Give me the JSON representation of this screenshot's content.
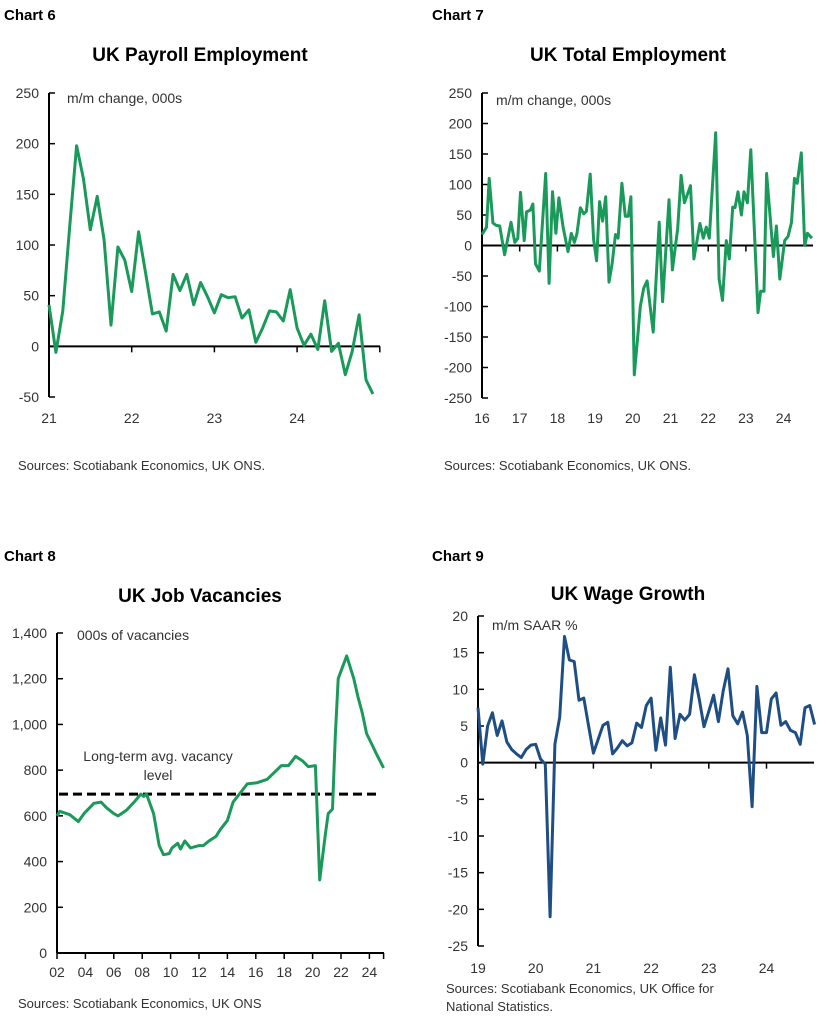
{
  "chart_data": [
    {
      "label": "Chart 6",
      "title": "UK Payroll Employment",
      "type": "line",
      "unit_label": "m/m change, 000s",
      "source": "Sources: Scotiabank Economics, UK ONS.",
      "color": "#1a9a5a",
      "frequency": "monthly",
      "x_start": "2021-01",
      "ylim": [
        -50,
        250
      ],
      "yticks": [
        "250",
        "200",
        "150",
        "100",
        "50",
        "0",
        "-50"
      ],
      "xticks": [
        "21",
        "22",
        "23",
        "24"
      ],
      "values": [
        41,
        -6,
        35,
        118,
        198,
        165,
        115,
        148,
        105,
        21,
        98,
        85,
        54,
        113,
        73,
        32,
        34,
        15,
        71,
        55,
        71,
        41,
        63,
        49,
        33,
        51,
        48,
        49,
        28,
        36,
        4,
        18,
        35,
        34,
        25,
        56,
        18,
        1,
        12,
        -3,
        45,
        -5,
        3,
        -28,
        -5,
        31,
        -33,
        -47
      ]
    },
    {
      "label": "Chart 7",
      "title": "UK Total Employment",
      "type": "line",
      "unit_label": "m/m change, 000s",
      "source": "Sources: Scotiabank Economics, UK ONS.",
      "color": "#1a9a5a",
      "ylim": [
        -250,
        250
      ],
      "yticks": [
        "250",
        "200",
        "150",
        "100",
        "50",
        "0",
        "-50",
        "-100",
        "-150",
        "-200",
        "-250"
      ],
      "xticks": [
        "16",
        "17",
        "18",
        "19",
        "20",
        "21",
        "22",
        "23",
        "24"
      ],
      "points": [
        [
          2016.0,
          18
        ],
        [
          2016.12,
          30
        ],
        [
          2016.19,
          110
        ],
        [
          2016.29,
          37
        ],
        [
          2016.38,
          33
        ],
        [
          2016.47,
          32
        ],
        [
          2016.6,
          -15
        ],
        [
          2016.77,
          38
        ],
        [
          2016.87,
          5
        ],
        [
          2016.95,
          12
        ],
        [
          2017.02,
          87
        ],
        [
          2017.12,
          8
        ],
        [
          2017.18,
          55
        ],
        [
          2017.28,
          58
        ],
        [
          2017.35,
          68
        ],
        [
          2017.42,
          -30
        ],
        [
          2017.52,
          -42
        ],
        [
          2017.69,
          118
        ],
        [
          2017.78,
          -62
        ],
        [
          2017.87,
          88
        ],
        [
          2017.96,
          20
        ],
        [
          2018.04,
          78
        ],
        [
          2018.15,
          30
        ],
        [
          2018.28,
          -10
        ],
        [
          2018.37,
          20
        ],
        [
          2018.45,
          5
        ],
        [
          2018.52,
          20
        ],
        [
          2018.61,
          62
        ],
        [
          2018.7,
          52
        ],
        [
          2018.77,
          56
        ],
        [
          2018.87,
          117
        ],
        [
          2018.96,
          10
        ],
        [
          2019.04,
          -25
        ],
        [
          2019.12,
          72
        ],
        [
          2019.2,
          40
        ],
        [
          2019.28,
          80
        ],
        [
          2019.37,
          -60
        ],
        [
          2019.45,
          -30
        ],
        [
          2019.54,
          18
        ],
        [
          2019.61,
          12
        ],
        [
          2019.71,
          102
        ],
        [
          2019.8,
          48
        ],
        [
          2019.88,
          48
        ],
        [
          2019.95,
          80
        ],
        [
          2020.04,
          -212
        ],
        [
          2020.13,
          -150
        ],
        [
          2020.2,
          -100
        ],
        [
          2020.29,
          -70
        ],
        [
          2020.38,
          -58
        ],
        [
          2020.45,
          -95
        ],
        [
          2020.54,
          -142
        ],
        [
          2020.7,
          38
        ],
        [
          2020.79,
          -92
        ],
        [
          2020.96,
          75
        ],
        [
          2021.05,
          -40
        ],
        [
          2021.19,
          28
        ],
        [
          2021.28,
          115
        ],
        [
          2021.37,
          70
        ],
        [
          2021.53,
          98
        ],
        [
          2021.62,
          -22
        ],
        [
          2021.78,
          36
        ],
        [
          2021.87,
          12
        ],
        [
          2021.95,
          30
        ],
        [
          2022.03,
          12
        ],
        [
          2022.2,
          185
        ],
        [
          2022.29,
          -55
        ],
        [
          2022.38,
          -90
        ],
        [
          2022.48,
          8
        ],
        [
          2022.56,
          -22
        ],
        [
          2022.65,
          63
        ],
        [
          2022.71,
          62
        ],
        [
          2022.79,
          88
        ],
        [
          2022.88,
          50
        ],
        [
          2022.95,
          88
        ],
        [
          2023.04,
          70
        ],
        [
          2023.13,
          157
        ],
        [
          2023.32,
          -110
        ],
        [
          2023.39,
          -75
        ],
        [
          2023.48,
          -75
        ],
        [
          2023.55,
          118
        ],
        [
          2023.73,
          -18
        ],
        [
          2023.81,
          32
        ],
        [
          2023.9,
          -55
        ],
        [
          2024.03,
          8
        ],
        [
          2024.12,
          15
        ],
        [
          2024.21,
          38
        ],
        [
          2024.29,
          110
        ],
        [
          2024.36,
          102
        ],
        [
          2024.47,
          152
        ],
        [
          2024.56,
          0
        ],
        [
          2024.63,
          20
        ],
        [
          2024.75,
          12
        ]
      ]
    },
    {
      "label": "Chart 8",
      "title": "UK Job Vacancies",
      "type": "line",
      "unit_label": "000s of vacancies",
      "source": "Sources: Scotiabank Economics, UK ONS",
      "color": "#1a9a5a",
      "ylim": [
        0,
        1400
      ],
      "yticks": [
        "1,400",
        "1,200",
        "1,000",
        "800",
        "600",
        "400",
        "200",
        "0"
      ],
      "xticks": [
        "02",
        "04",
        "06",
        "08",
        "10",
        "12",
        "14",
        "16",
        "18",
        "20",
        "22",
        "24"
      ],
      "reference_line": {
        "label": "Long-term avg. vacancy level",
        "label_line1": "Long-term avg. vacancy",
        "label_line2": "level",
        "value": 695,
        "color": "#000000",
        "style": "dashed"
      },
      "points": [
        [
          2002.0,
          600
        ],
        [
          2002.2,
          620
        ],
        [
          2002.9,
          605
        ],
        [
          2003.5,
          575
        ],
        [
          2003.9,
          610
        ],
        [
          2004.6,
          655
        ],
        [
          2005.1,
          660
        ],
        [
          2005.5,
          635
        ],
        [
          2006.0,
          610
        ],
        [
          2006.3,
          600
        ],
        [
          2006.9,
          625
        ],
        [
          2007.5,
          665
        ],
        [
          2007.9,
          695
        ],
        [
          2008.1,
          685
        ],
        [
          2008.3,
          695
        ],
        [
          2008.8,
          610
        ],
        [
          2009.2,
          470
        ],
        [
          2009.5,
          430
        ],
        [
          2009.9,
          435
        ],
        [
          2010.1,
          460
        ],
        [
          2010.5,
          480
        ],
        [
          2010.7,
          455
        ],
        [
          2011.0,
          490
        ],
        [
          2011.4,
          460
        ],
        [
          2012.0,
          470
        ],
        [
          2012.3,
          470
        ],
        [
          2012.7,
          490
        ],
        [
          2013.2,
          510
        ],
        [
          2013.5,
          540
        ],
        [
          2014.0,
          580
        ],
        [
          2014.4,
          660
        ],
        [
          2014.9,
          700
        ],
        [
          2015.4,
          740
        ],
        [
          2016.1,
          745
        ],
        [
          2016.8,
          760
        ],
        [
          2017.3,
          790
        ],
        [
          2017.8,
          820
        ],
        [
          2018.3,
          820
        ],
        [
          2018.8,
          860
        ],
        [
          2019.3,
          840
        ],
        [
          2019.7,
          815
        ],
        [
          2020.2,
          820
        ],
        [
          2020.5,
          320
        ],
        [
          2020.9,
          520
        ],
        [
          2021.1,
          610
        ],
        [
          2021.4,
          630
        ],
        [
          2021.6,
          950
        ],
        [
          2021.8,
          1200
        ],
        [
          2022.1,
          1250
        ],
        [
          2022.4,
          1300
        ],
        [
          2022.9,
          1200
        ],
        [
          2023.2,
          1120
        ],
        [
          2023.5,
          1050
        ],
        [
          2023.8,
          960
        ],
        [
          2024.2,
          910
        ],
        [
          2024.5,
          870
        ],
        [
          2025.0,
          810
        ]
      ]
    },
    {
      "label": "Chart 9",
      "title": "UK Wage Growth",
      "type": "line",
      "unit_label": "m/m SAAR %",
      "source_line1": "Sources: Scotiabank Economics, UK Office for",
      "source_line2": "National Statistics.",
      "color": "#1f4e85",
      "frequency": "monthly",
      "x_start": "2019-01",
      "ylim": [
        -25,
        20
      ],
      "yticks": [
        "20",
        "15",
        "10",
        "5",
        "0",
        "-5",
        "-10",
        "-15",
        "-20",
        "-25"
      ],
      "xticks": [
        "19",
        "20",
        "21",
        "22",
        "23",
        "24"
      ],
      "values": [
        7.5,
        -0.2,
        5,
        6.8,
        3.7,
        5.7,
        2.8,
        1.8,
        1.2,
        0.7,
        1.8,
        2.4,
        2.5,
        0.5,
        -0.2,
        -21,
        2.5,
        6.2,
        17.2,
        14,
        13.8,
        8.5,
        8.8,
        5,
        1.3,
        3.2,
        5.1,
        5.5,
        1.2,
        2,
        3,
        2.3,
        2.7,
        5.4,
        4.8,
        7.8,
        8.8,
        1.7,
        6.1,
        2.4,
        13,
        3.3,
        6.6,
        5.8,
        6.6,
        12,
        8.7,
        4.9,
        7,
        9.2,
        5.6,
        9.8,
        12.8,
        6.4,
        5.3,
        6.9,
        3.7,
        -6,
        10.4,
        4.1,
        4.1,
        8.7,
        9.5,
        5.1,
        5.6,
        4.4,
        4.1,
        2.5,
        7.5,
        7.8,
        5.2
      ]
    }
  ]
}
